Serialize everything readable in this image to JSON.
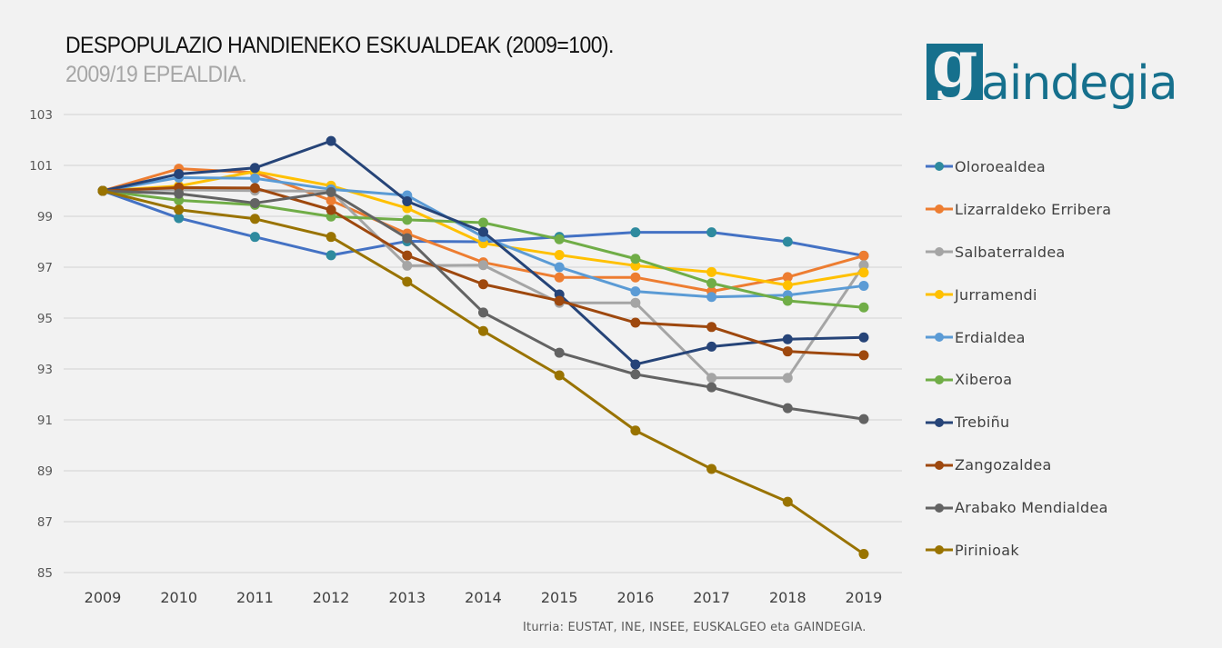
{
  "header": {
    "title": "DESPOPULAZIO HANDIENEKO ESKUALDEAK (2009=100).",
    "subtitle": "2009/19 EPEALDIA."
  },
  "logo": {
    "letter": "g",
    "text": "aindegia",
    "color": "#16708d"
  },
  "source": "Iturria: EUSTAT, INE, INSEE, EUSKALGEO eta GAINDEGIA.",
  "chart_data": {
    "type": "line",
    "title": "DESPOPULAZIO HANDIENEKO ESKUALDEAK (2009=100).",
    "subtitle": "2009/19 EPEALDIA.",
    "xlabel": "",
    "ylabel": "",
    "x": [
      "2009",
      "2010",
      "2011",
      "2012",
      "2013",
      "2014",
      "2015",
      "2016",
      "2017",
      "2018",
      "2019"
    ],
    "ylim": [
      85,
      103
    ],
    "yticks": [
      85,
      87,
      89,
      91,
      93,
      95,
      97,
      99,
      101,
      103
    ],
    "grid": true,
    "legend_position": "right",
    "series": [
      {
        "name": "Oloroealdea",
        "line_color": "#4472c4",
        "marker_color": "#2e8a9e",
        "values": [
          100,
          98.93,
          98.19,
          97.47,
          98.02,
          98.0,
          98.19,
          98.37,
          98.37,
          98.0,
          97.45
        ]
      },
      {
        "name": "Lizarraldeko Erribera",
        "line_color": "#ed7d31",
        "marker_color": "#ed7d31",
        "values": [
          100,
          100.87,
          100.72,
          99.62,
          98.32,
          97.19,
          96.6,
          96.6,
          96.05,
          96.61,
          97.45
        ]
      },
      {
        "name": "Salbaterraldea",
        "line_color": "#a5a5a5",
        "marker_color": "#a5a5a5",
        "values": [
          100,
          100.04,
          100.01,
          99.98,
          97.06,
          97.08,
          95.6,
          95.6,
          92.65,
          92.65,
          97.08
        ]
      },
      {
        "name": "Jurramendi",
        "line_color": "#ffc000",
        "marker_color": "#ffc000",
        "values": [
          100,
          100.19,
          100.76,
          100.2,
          99.32,
          97.94,
          97.48,
          97.06,
          96.81,
          96.29,
          96.79
        ]
      },
      {
        "name": "Erdialdea",
        "line_color": "#5b9bd5",
        "marker_color": "#5b9bd5",
        "values": [
          100,
          100.52,
          100.49,
          100.06,
          99.82,
          98.19,
          97.0,
          96.05,
          95.83,
          95.9,
          96.27
        ]
      },
      {
        "name": "Xiberoa",
        "line_color": "#70ad47",
        "marker_color": "#70ad47",
        "values": [
          100,
          99.63,
          99.45,
          98.99,
          98.86,
          98.75,
          98.1,
          97.33,
          96.37,
          95.68,
          95.42
        ]
      },
      {
        "name": "Trebiñu",
        "line_color": "#264478",
        "marker_color": "#264478",
        "values": [
          100,
          100.66,
          100.9,
          101.96,
          99.59,
          98.39,
          95.93,
          93.18,
          93.88,
          94.17,
          94.24
        ]
      },
      {
        "name": "Zangozaldea",
        "line_color": "#9e480e",
        "marker_color": "#9e480e",
        "values": [
          100,
          100.13,
          100.11,
          99.25,
          97.46,
          96.33,
          95.68,
          94.82,
          94.65,
          93.69,
          93.54
        ]
      },
      {
        "name": "Arabako Mendialdea",
        "line_color": "#636363",
        "marker_color": "#636363",
        "values": [
          100,
          99.89,
          99.52,
          99.95,
          98.14,
          95.22,
          93.64,
          92.79,
          92.28,
          91.46,
          91.03
        ]
      },
      {
        "name": "Pirinioak",
        "line_color": "#997300",
        "marker_color": "#997300",
        "values": [
          100,
          99.26,
          98.9,
          98.19,
          96.43,
          94.49,
          92.75,
          90.58,
          89.07,
          87.78,
          85.73
        ]
      }
    ]
  }
}
